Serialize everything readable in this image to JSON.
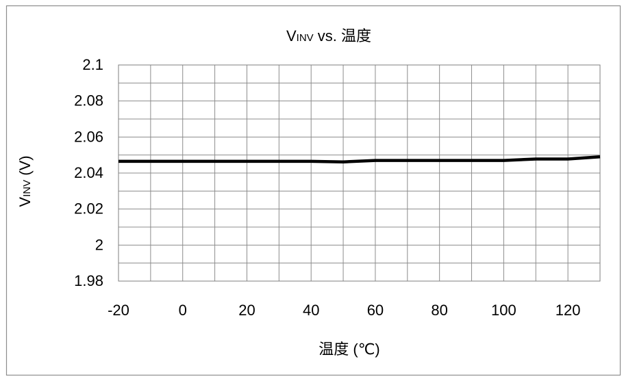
{
  "chart_data": {
    "type": "line",
    "title": {
      "main": "V",
      "sub": "INV",
      "rest": " vs.  温度"
    },
    "xlabel": "温度 (℃)",
    "ylabel": {
      "main": "V",
      "sub": "INV",
      "rest": " (V)"
    },
    "xlim": [
      -20,
      130
    ],
    "ylim": [
      1.98,
      2.1
    ],
    "x_ticks": [
      -20,
      0,
      20,
      40,
      60,
      80,
      100,
      120
    ],
    "x_tick_labels": [
      "-20",
      "0",
      "20",
      "40",
      "60",
      "80",
      "100",
      "120"
    ],
    "y_ticks": [
      1.98,
      2,
      2.02,
      2.04,
      2.06,
      2.08,
      2.1
    ],
    "y_tick_labels": [
      "1.98",
      "2",
      "2.02",
      "2.04",
      "2.06",
      "2.08",
      "2.1"
    ],
    "grid": true,
    "legend": "none",
    "series": [
      {
        "color": "#000000",
        "x": [
          -20,
          0,
          20,
          40,
          50,
          60,
          80,
          100,
          110,
          120,
          130
        ],
        "y": [
          2.0465,
          2.0465,
          2.0465,
          2.0465,
          2.0462,
          2.047,
          2.047,
          2.047,
          2.0478,
          2.0478,
          2.049
        ]
      }
    ]
  }
}
